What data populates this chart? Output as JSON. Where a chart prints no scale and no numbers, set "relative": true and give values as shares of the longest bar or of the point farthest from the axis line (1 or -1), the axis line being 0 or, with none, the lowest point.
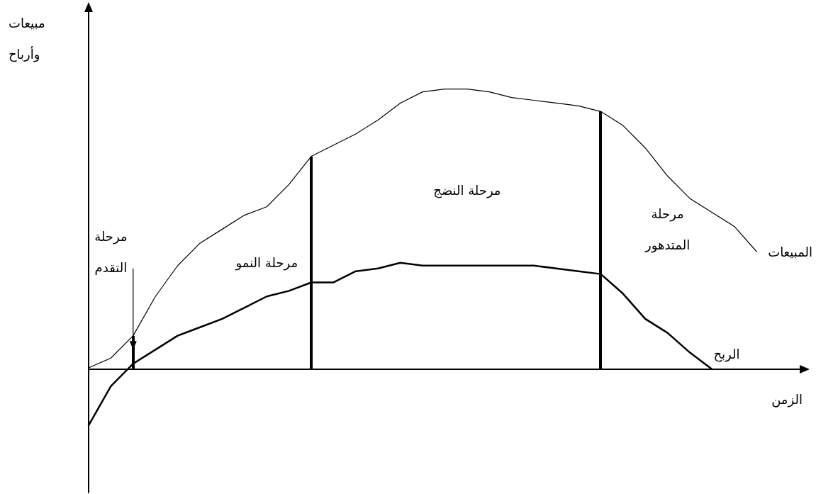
{
  "chart_data": {
    "type": "line",
    "relative": true,
    "xlabel": "الزمن",
    "ylabel": "مبيعات وأرباح",
    "categories": [
      null,
      null,
      null,
      null,
      null,
      null,
      null,
      null,
      null,
      null,
      null,
      null,
      null,
      null,
      null,
      null,
      null,
      null,
      null,
      null,
      null,
      null,
      null,
      null,
      null,
      null,
      null,
      null,
      null,
      null,
      null,
      null,
      null
    ],
    "tick_labels": false,
    "grid": false,
    "legend": false,
    "marker": "none",
    "series": [
      {
        "name": "المبيعات",
        "color": "#000000",
        "values": [
          0.005,
          0.04,
          0.12,
          0.26,
          0.37,
          0.45,
          0.5,
          0.55,
          0.58,
          0.66,
          0.76,
          0.8,
          0.84,
          0.89,
          0.95,
          0.99,
          1,
          1,
          0.99,
          0.97,
          0.96,
          0.95,
          0.94,
          0.92,
          0.87,
          0.79,
          0.69,
          0.61,
          0.56,
          0.51,
          0.42,
          null,
          null
        ]
      },
      {
        "name": "الربح",
        "color": "#000000",
        "values": [
          -0.2,
          -0.06,
          0.02,
          0.07,
          0.12,
          0.15,
          0.18,
          0.22,
          0.26,
          0.28,
          0.31,
          0.31,
          0.35,
          0.36,
          0.38,
          0.37,
          0.37,
          0.37,
          0.37,
          0.37,
          0.37,
          0.36,
          0.35,
          0.34,
          0.27,
          0.18,
          0.13,
          0.06,
          0,
          null,
          null,
          null,
          null
        ]
      }
    ],
    "annotations": [
      "مرحلة التقدم",
      "مرحلة النمو",
      "مرحلة النضج",
      "مرحلة المتدهور"
    ]
  }
}
